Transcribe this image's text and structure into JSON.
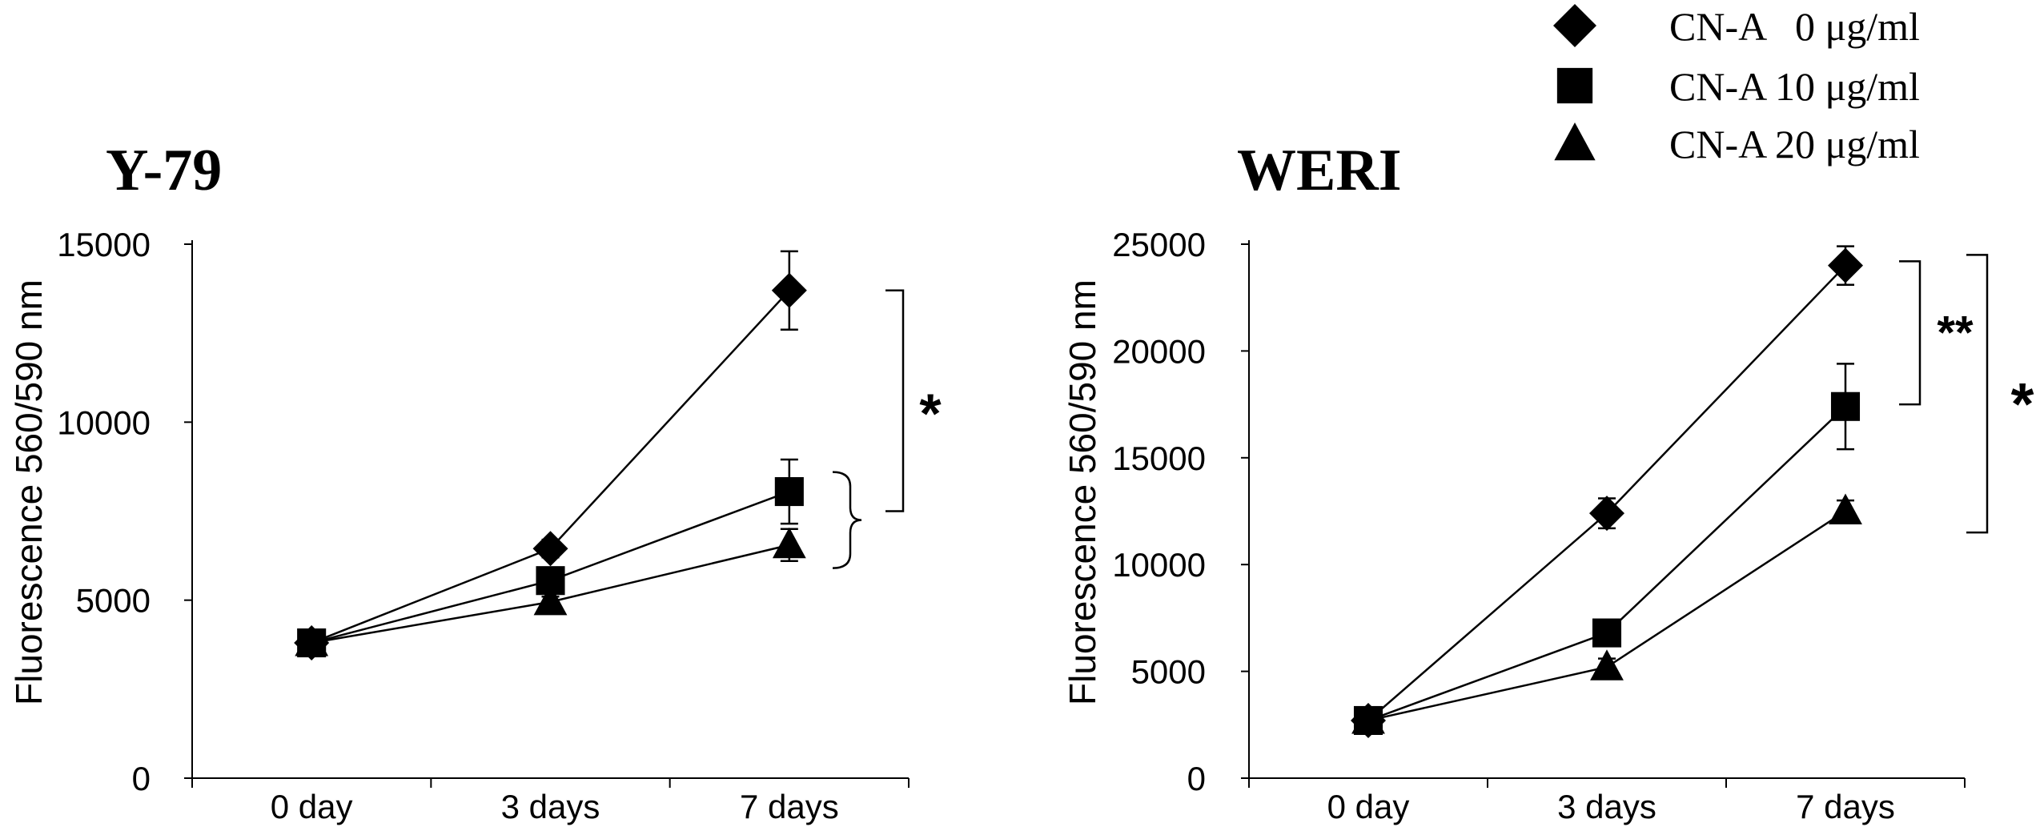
{
  "legend": [
    {
      "label": "CN-A   0 μg/ml",
      "marker": "diamond"
    },
    {
      "label": "CN-A 10 μg/ml",
      "marker": "square"
    },
    {
      "label": "CN-A 20 μg/ml",
      "marker": "triangle"
    }
  ],
  "colors": {
    "ink": "#000000",
    "background": "#ffffff"
  },
  "chart_data": [
    {
      "type": "line",
      "title": "Y-79",
      "xlabel": "",
      "ylabel": "Fluorescence 560/590 nm",
      "categories": [
        "0 day",
        "3 days",
        "7 days"
      ],
      "ylim": [
        0,
        15000
      ],
      "yticks": [
        0,
        5000,
        10000,
        15000
      ],
      "ytick_labels": [
        "0",
        "5000",
        "10000",
        "15000"
      ],
      "grid": false,
      "legend_position": "top-right",
      "series": [
        {
          "name": "CN-A   0 μg/ml",
          "marker": "diamond",
          "values": [
            3800,
            6450,
            13700
          ],
          "errors": [
            200,
            250,
            1100
          ]
        },
        {
          "name": "CN-A 10 μg/ml",
          "marker": "square",
          "values": [
            3800,
            5550,
            8050
          ],
          "errors": [
            150,
            300,
            900
          ]
        },
        {
          "name": "CN-A 20 μg/ml",
          "marker": "triangle",
          "values": [
            3800,
            4950,
            6550
          ],
          "errors": [
            150,
            150,
            450
          ]
        }
      ],
      "annotations": [
        {
          "text": "*",
          "type": "bracket",
          "from_value": 13700,
          "to_value": 7500
        },
        {
          "text": "",
          "type": "brace",
          "from_value": 8600,
          "to_value": 5900
        }
      ]
    },
    {
      "type": "line",
      "title": "WERI",
      "xlabel": "",
      "ylabel": "Fluorescence 560/590 nm",
      "categories": [
        "0 day",
        "3 days",
        "7 days"
      ],
      "ylim": [
        0,
        25000
      ],
      "yticks": [
        0,
        5000,
        10000,
        15000,
        20000,
        25000
      ],
      "ytick_labels": [
        "0",
        "5000",
        "10000",
        "15000",
        "20000",
        "25000"
      ],
      "grid": false,
      "legend_position": "top-right",
      "series": [
        {
          "name": "CN-A   0 μg/ml",
          "marker": "diamond",
          "values": [
            2700,
            12400,
            24000
          ],
          "errors": [
            200,
            700,
            900
          ]
        },
        {
          "name": "CN-A 10 μg/ml",
          "marker": "square",
          "values": [
            2700,
            6800,
            17400
          ],
          "errors": [
            200,
            300,
            2000
          ]
        },
        {
          "name": "CN-A 20 μg/ml",
          "marker": "triangle",
          "values": [
            2700,
            5200,
            12500
          ],
          "errors": [
            200,
            400,
            500
          ]
        }
      ],
      "annotations": [
        {
          "text": "**",
          "type": "bracket",
          "from_value": 24200,
          "to_value": 17500
        },
        {
          "text": "*",
          "type": "bracket",
          "from_value": 24500,
          "to_value": 11500
        }
      ]
    }
  ]
}
